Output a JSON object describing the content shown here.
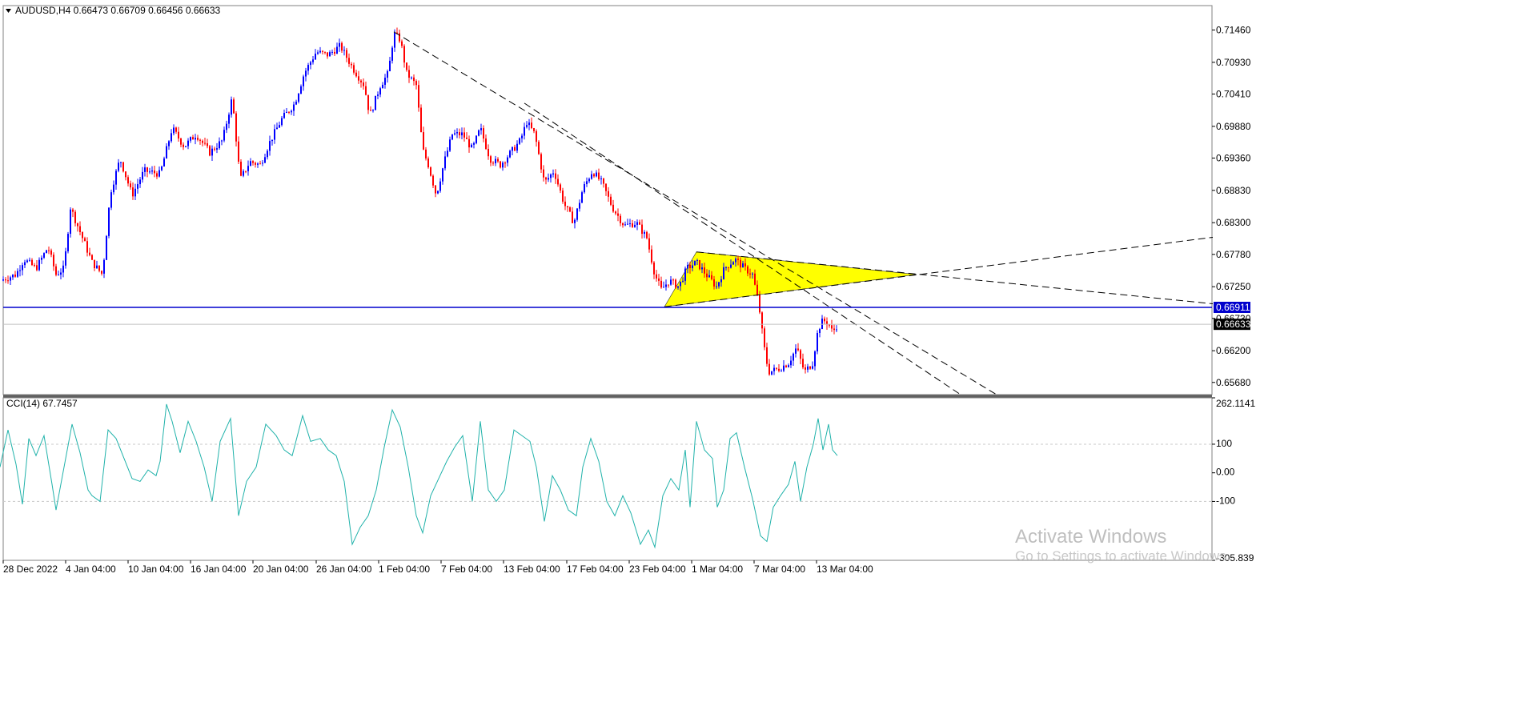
{
  "header": {
    "symbol_line": "AUDUSD,H4  0.66473 0.66709 0.66456 0.66633"
  },
  "colors": {
    "bull": "#0000ff",
    "bear": "#ff0000",
    "cci": "#20b2aa",
    "hline": "#0000cd",
    "triangle": "#ffff00",
    "price_tag_bg": "#000000",
    "level_tag_bg": "#0000cd"
  },
  "chart_data": [
    {
      "type": "candlestick",
      "symbol": "AUDUSD",
      "timeframe": "H4",
      "ohlc_last": {
        "open": 0.66473,
        "high": 0.66709,
        "low": 0.66456,
        "close": 0.66633
      },
      "ylim": [
        0.6548,
        0.7186
      ],
      "y_ticks": [
        "0.71460",
        "0.70930",
        "0.70410",
        "0.69880",
        "0.69360",
        "0.68830",
        "0.68300",
        "0.67780",
        "0.67250",
        "0.66730",
        "0.66200",
        "0.65680"
      ],
      "x_ticks": [
        "28 Dec 2022",
        "4 Jan 04:00",
        "10 Jan 04:00",
        "16 Jan 04:00",
        "20 Jan 04:00",
        "26 Jan 04:00",
        "1 Feb 04:00",
        "7 Feb 04:00",
        "13 Feb 04:00",
        "17 Feb 04:00",
        "23 Feb 04:00",
        "1 Mar 04:00",
        "7 Mar 04:00",
        "13 Mar 04:00"
      ],
      "close_path": [
        [
          0,
          0.6735
        ],
        [
          20,
          0.6745
        ],
        [
          30,
          0.677
        ],
        [
          45,
          0.6755
        ],
        [
          60,
          0.679
        ],
        [
          70,
          0.6745
        ],
        [
          80,
          0.6755
        ],
        [
          88,
          0.6855
        ],
        [
          100,
          0.6815
        ],
        [
          115,
          0.6765
        ],
        [
          128,
          0.6745
        ],
        [
          138,
          0.688
        ],
        [
          150,
          0.6935
        ],
        [
          165,
          0.6875
        ],
        [
          180,
          0.6915
        ],
        [
          200,
          0.691
        ],
        [
          215,
          0.6985
        ],
        [
          230,
          0.6955
        ],
        [
          245,
          0.6975
        ],
        [
          262,
          0.6945
        ],
        [
          278,
          0.6965
        ],
        [
          290,
          0.7035
        ],
        [
          300,
          0.69
        ],
        [
          312,
          0.693
        ],
        [
          325,
          0.6925
        ],
        [
          338,
          0.6965
        ],
        [
          352,
          0.7
        ],
        [
          368,
          0.7025
        ],
        [
          380,
          0.7075
        ],
        [
          395,
          0.711
        ],
        [
          410,
          0.7105
        ],
        [
          425,
          0.712
        ],
        [
          440,
          0.7085
        ],
        [
          455,
          0.7055
        ],
        [
          462,
          0.7005
        ],
        [
          475,
          0.7055
        ],
        [
          485,
          0.7075
        ],
        [
          492,
          0.714
        ],
        [
          500,
          0.713
        ],
        [
          508,
          0.7075
        ],
        [
          520,
          0.7055
        ],
        [
          528,
          0.695
        ],
        [
          535,
          0.6925
        ],
        [
          545,
          0.6875
        ],
        [
          555,
          0.693
        ],
        [
          565,
          0.6975
        ],
        [
          578,
          0.6975
        ],
        [
          590,
          0.695
        ],
        [
          600,
          0.6985
        ],
        [
          612,
          0.6935
        ],
        [
          625,
          0.6925
        ],
        [
          638,
          0.6945
        ],
        [
          650,
          0.6965
        ],
        [
          658,
          0.6995
        ],
        [
          668,
          0.6975
        ],
        [
          680,
          0.6895
        ],
        [
          692,
          0.6915
        ],
        [
          705,
          0.686
        ],
        [
          717,
          0.683
        ],
        [
          728,
          0.6885
        ],
        [
          740,
          0.6915
        ],
        [
          752,
          0.6895
        ],
        [
          765,
          0.6855
        ],
        [
          780,
          0.6825
        ],
        [
          795,
          0.683
        ],
        [
          808,
          0.6805
        ],
        [
          818,
          0.6745
        ],
        [
          826,
          0.672
        ],
        [
          836,
          0.6735
        ],
        [
          848,
          0.6725
        ],
        [
          858,
          0.6755
        ],
        [
          870,
          0.6765
        ],
        [
          882,
          0.6745
        ],
        [
          895,
          0.6725
        ],
        [
          905,
          0.6755
        ],
        [
          918,
          0.677
        ],
        [
          930,
          0.6755
        ],
        [
          940,
          0.6745
        ],
        [
          948,
          0.6695
        ],
        [
          954,
          0.663
        ],
        [
          960,
          0.6585
        ],
        [
          972,
          0.659
        ],
        [
          985,
          0.66
        ],
        [
          995,
          0.6625
        ],
        [
          1005,
          0.6585
        ],
        [
          1015,
          0.66
        ],
        [
          1022,
          0.6655
        ],
        [
          1028,
          0.667
        ],
        [
          1035,
          0.6665
        ],
        [
          1040,
          0.665
        ],
        [
          1046,
          0.6663
        ]
      ],
      "horizontal_levels": [
        {
          "price": 0.66911,
          "label": "0.66911"
        },
        {
          "price": 0.66633,
          "label": "0.66633"
        }
      ],
      "trendlines": [
        {
          "from": [
            492,
            0.7143
          ],
          "to": [
            1245,
            0.6548
          ]
        },
        {
          "from": [
            655,
            0.7026
          ],
          "to": [
            1200,
            0.6548
          ]
        },
        {
          "from": [
            830,
            0.6692
          ],
          "to": [
            1515,
            0.6806
          ]
        },
        {
          "from": [
            870,
            0.6782
          ],
          "to": [
            1515,
            0.6697
          ]
        }
      ],
      "triangle": [
        [
          830,
          0.6692
        ],
        [
          870,
          0.6782
        ],
        [
          1145,
          0.6745
        ]
      ]
    },
    {
      "type": "line",
      "name": "CCI(14) 67.7457",
      "indicator_value": "67.7457",
      "ylim": [
        -305.839,
        262.1141
      ],
      "y_ticks": [
        "262.1141",
        "100",
        "0.00",
        "-100",
        "-305.839"
      ],
      "levels": [
        100,
        -100
      ],
      "points": [
        [
          0,
          20
        ],
        [
          10,
          150
        ],
        [
          20,
          30
        ],
        [
          28,
          -110
        ],
        [
          36,
          120
        ],
        [
          45,
          60
        ],
        [
          55,
          130
        ],
        [
          65,
          -40
        ],
        [
          70,
          -130
        ],
        [
          80,
          20
        ],
        [
          90,
          170
        ],
        [
          100,
          70
        ],
        [
          110,
          -60
        ],
        [
          115,
          -80
        ],
        [
          125,
          -100
        ],
        [
          135,
          150
        ],
        [
          145,
          120
        ],
        [
          155,
          50
        ],
        [
          165,
          -20
        ],
        [
          175,
          -30
        ],
        [
          185,
          10
        ],
        [
          195,
          -10
        ],
        [
          200,
          40
        ],
        [
          208,
          240
        ],
        [
          215,
          180
        ],
        [
          225,
          70
        ],
        [
          235,
          180
        ],
        [
          245,
          110
        ],
        [
          255,
          20
        ],
        [
          265,
          -100
        ],
        [
          275,
          110
        ],
        [
          288,
          190
        ],
        [
          298,
          -150
        ],
        [
          308,
          -30
        ],
        [
          320,
          20
        ],
        [
          332,
          170
        ],
        [
          345,
          130
        ],
        [
          355,
          80
        ],
        [
          365,
          60
        ],
        [
          378,
          200
        ],
        [
          388,
          110
        ],
        [
          400,
          120
        ],
        [
          410,
          80
        ],
        [
          420,
          60
        ],
        [
          430,
          -30
        ],
        [
          440,
          -250
        ],
        [
          450,
          -190
        ],
        [
          460,
          -150
        ],
        [
          470,
          -60
        ],
        [
          480,
          90
        ],
        [
          490,
          220
        ],
        [
          500,
          160
        ],
        [
          510,
          20
        ],
        [
          520,
          -150
        ],
        [
          528,
          -210
        ],
        [
          538,
          -80
        ],
        [
          548,
          -20
        ],
        [
          558,
          40
        ],
        [
          568,
          90
        ],
        [
          578,
          130
        ],
        [
          590,
          -100
        ],
        [
          600,
          180
        ],
        [
          610,
          -60
        ],
        [
          620,
          -100
        ],
        [
          630,
          -60
        ],
        [
          642,
          150
        ],
        [
          652,
          130
        ],
        [
          662,
          110
        ],
        [
          670,
          20
        ],
        [
          680,
          -170
        ],
        [
          690,
          -10
        ],
        [
          700,
          -60
        ],
        [
          710,
          -130
        ],
        [
          720,
          -150
        ],
        [
          728,
          20
        ],
        [
          738,
          120
        ],
        [
          748,
          40
        ],
        [
          758,
          -100
        ],
        [
          768,
          -150
        ],
        [
          778,
          -80
        ],
        [
          788,
          -140
        ],
        [
          800,
          -250
        ],
        [
          810,
          -200
        ],
        [
          818,
          -260
        ],
        [
          828,
          -80
        ],
        [
          838,
          -20
        ],
        [
          848,
          -60
        ],
        [
          856,
          80
        ],
        [
          862,
          -120
        ],
        [
          870,
          180
        ],
        [
          880,
          80
        ],
        [
          890,
          50
        ],
        [
          896,
          -120
        ],
        [
          904,
          -60
        ],
        [
          912,
          120
        ],
        [
          920,
          140
        ],
        [
          930,
          20
        ],
        [
          940,
          -90
        ],
        [
          950,
          -220
        ],
        [
          958,
          -240
        ],
        [
          966,
          -120
        ],
        [
          975,
          -80
        ],
        [
          985,
          -40
        ],
        [
          993,
          40
        ],
        [
          1000,
          -100
        ],
        [
          1008,
          20
        ],
        [
          1016,
          100
        ],
        [
          1022,
          190
        ],
        [
          1028,
          80
        ],
        [
          1035,
          170
        ],
        [
          1040,
          80
        ],
        [
          1046,
          60
        ]
      ]
    }
  ],
  "cci_panel": {
    "label": "CCI(14) 67.7457"
  },
  "watermark": {
    "line1": "Activate Windows",
    "line2": "Go to Settings to activate Windows."
  }
}
